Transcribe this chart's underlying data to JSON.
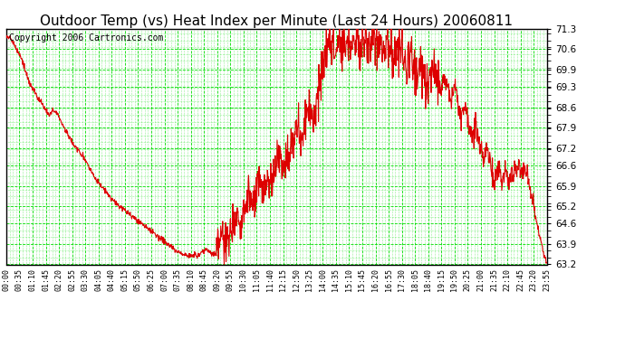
{
  "title": "Outdoor Temp (vs) Heat Index per Minute (Last 24 Hours) 20060811",
  "copyright": "Copyright 2006 Cartronics.com",
  "ylim": [
    63.2,
    71.3
  ],
  "yticks": [
    71.3,
    70.6,
    69.9,
    69.3,
    68.6,
    67.9,
    67.2,
    66.6,
    65.9,
    65.2,
    64.6,
    63.9,
    63.2
  ],
  "xtick_labels": [
    "00:00",
    "00:35",
    "01:10",
    "01:45",
    "02:20",
    "02:55",
    "03:30",
    "04:05",
    "04:40",
    "05:15",
    "05:50",
    "06:25",
    "07:00",
    "07:35",
    "08:10",
    "08:45",
    "09:20",
    "09:55",
    "10:30",
    "11:05",
    "11:40",
    "12:15",
    "12:50",
    "13:25",
    "14:00",
    "14:35",
    "15:10",
    "15:45",
    "16:20",
    "16:55",
    "17:30",
    "18:05",
    "18:40",
    "19:15",
    "19:50",
    "20:25",
    "21:00",
    "21:35",
    "22:10",
    "22:45",
    "23:20",
    "23:55"
  ],
  "bg_color": "#ffffff",
  "grid_major_color": "#00dd00",
  "grid_minor_color": "#00dd00",
  "line_color": "#dd0000",
  "title_fontsize": 11,
  "copyright_fontsize": 7,
  "control_points": [
    [
      0,
      71.1
    ],
    [
      10,
      71.0
    ],
    [
      20,
      70.8
    ],
    [
      40,
      70.3
    ],
    [
      60,
      69.5
    ],
    [
      80,
      69.0
    ],
    [
      100,
      68.6
    ],
    [
      115,
      68.3
    ],
    [
      125,
      68.5
    ],
    [
      135,
      68.4
    ],
    [
      150,
      68.0
    ],
    [
      180,
      67.3
    ],
    [
      210,
      66.8
    ],
    [
      240,
      66.1
    ],
    [
      270,
      65.6
    ],
    [
      300,
      65.2
    ],
    [
      330,
      64.9
    ],
    [
      360,
      64.6
    ],
    [
      390,
      64.3
    ],
    [
      420,
      64.0
    ],
    [
      450,
      63.7
    ],
    [
      480,
      63.5
    ],
    [
      510,
      63.5
    ],
    [
      530,
      63.7
    ],
    [
      545,
      63.6
    ],
    [
      560,
      63.5
    ],
    [
      575,
      64.2
    ],
    [
      585,
      63.8
    ],
    [
      600,
      64.5
    ],
    [
      615,
      65.0
    ],
    [
      625,
      64.6
    ],
    [
      635,
      65.2
    ],
    [
      645,
      65.6
    ],
    [
      655,
      65.0
    ],
    [
      665,
      65.5
    ],
    [
      675,
      66.0
    ],
    [
      685,
      65.5
    ],
    [
      695,
      66.2
    ],
    [
      705,
      65.8
    ],
    [
      715,
      66.5
    ],
    [
      725,
      67.0
    ],
    [
      735,
      66.5
    ],
    [
      745,
      67.2
    ],
    [
      755,
      66.8
    ],
    [
      765,
      67.5
    ],
    [
      775,
      68.0
    ],
    [
      785,
      67.5
    ],
    [
      795,
      68.2
    ],
    [
      805,
      68.8
    ],
    [
      815,
      68.2
    ],
    [
      825,
      68.8
    ],
    [
      835,
      69.5
    ],
    [
      845,
      70.0
    ],
    [
      855,
      70.5
    ],
    [
      860,
      71.1
    ],
    [
      865,
      70.5
    ],
    [
      870,
      71.0
    ],
    [
      875,
      70.3
    ],
    [
      880,
      70.8
    ],
    [
      885,
      71.2
    ],
    [
      890,
      70.5
    ],
    [
      895,
      71.0
    ],
    [
      900,
      70.6
    ],
    [
      905,
      71.0
    ],
    [
      910,
      70.7
    ],
    [
      915,
      71.1
    ],
    [
      920,
      70.5
    ],
    [
      925,
      71.0
    ],
    [
      930,
      70.8
    ],
    [
      935,
      71.2
    ],
    [
      940,
      70.6
    ],
    [
      945,
      71.0
    ],
    [
      950,
      70.8
    ],
    [
      955,
      71.1
    ],
    [
      960,
      70.5
    ],
    [
      965,
      70.9
    ],
    [
      975,
      70.6
    ],
    [
      985,
      71.0
    ],
    [
      995,
      70.8
    ],
    [
      1005,
      70.5
    ],
    [
      1015,
      70.9
    ],
    [
      1025,
      70.6
    ],
    [
      1035,
      70.3
    ],
    [
      1045,
      70.7
    ],
    [
      1055,
      70.4
    ],
    [
      1065,
      70.0
    ],
    [
      1075,
      70.5
    ],
    [
      1085,
      70.1
    ],
    [
      1095,
      69.7
    ],
    [
      1100,
      70.2
    ],
    [
      1110,
      69.8
    ],
    [
      1120,
      69.3
    ],
    [
      1130,
      69.8
    ],
    [
      1140,
      70.2
    ],
    [
      1145,
      69.5
    ],
    [
      1150,
      70.0
    ],
    [
      1155,
      69.2
    ],
    [
      1165,
      69.8
    ],
    [
      1175,
      69.3
    ],
    [
      1185,
      68.8
    ],
    [
      1195,
      69.5
    ],
    [
      1200,
      68.8
    ],
    [
      1210,
      68.2
    ],
    [
      1220,
      68.8
    ],
    [
      1230,
      68.2
    ],
    [
      1240,
      67.5
    ],
    [
      1250,
      68.0
    ],
    [
      1260,
      67.3
    ],
    [
      1270,
      66.7
    ],
    [
      1280,
      67.3
    ],
    [
      1290,
      66.6
    ],
    [
      1300,
      66.0
    ],
    [
      1310,
      66.6
    ],
    [
      1320,
      66.0
    ],
    [
      1330,
      66.5
    ],
    [
      1340,
      66.0
    ],
    [
      1345,
      66.5
    ],
    [
      1350,
      66.2
    ],
    [
      1355,
      66.7
    ],
    [
      1360,
      66.3
    ],
    [
      1365,
      66.7
    ],
    [
      1370,
      66.4
    ],
    [
      1375,
      66.2
    ],
    [
      1380,
      66.6
    ],
    [
      1385,
      66.3
    ],
    [
      1390,
      66.0
    ],
    [
      1395,
      65.7
    ],
    [
      1400,
      65.4
    ],
    [
      1405,
      65.1
    ],
    [
      1410,
      64.8
    ],
    [
      1415,
      64.5
    ],
    [
      1420,
      64.2
    ],
    [
      1425,
      63.9
    ],
    [
      1430,
      63.6
    ],
    [
      1435,
      63.4
    ],
    [
      1439,
      63.2
    ]
  ]
}
